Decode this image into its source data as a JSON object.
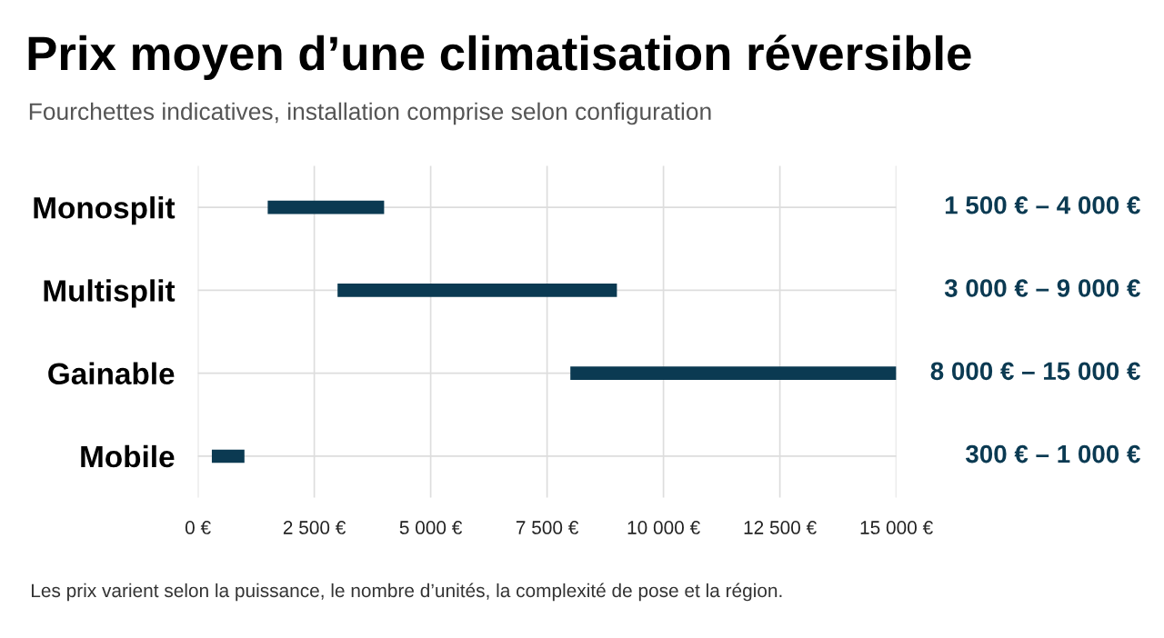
{
  "chart_data": {
    "type": "bar",
    "orientation": "horizontal",
    "title": "Prix moyen d’une climatisation réversible",
    "subtitle": "Fourchettes indicatives, installation comprise selon configuration",
    "categories": [
      "Monosplit",
      "Multisplit",
      "Gainable",
      "Mobile"
    ],
    "base": [
      1500,
      3000,
      8000,
      300
    ],
    "values": [
      2500,
      6000,
      7000,
      700
    ],
    "color": "#0b3a52",
    "xlim": [
      0,
      15000
    ],
    "xticks": [
      {
        "value": 0,
        "label": "0 €"
      },
      {
        "value": 2500,
        "label": "2 500 €"
      },
      {
        "value": 5000,
        "label": "5 000 €"
      },
      {
        "value": 7500,
        "label": "7 500 €"
      },
      {
        "value": 10000,
        "label": "10 000 €"
      },
      {
        "value": 12500,
        "label": "12 500 €"
      },
      {
        "value": 15000,
        "label": "15 000 €"
      }
    ],
    "grid": true,
    "annotations": [
      "1 500 € – 4 000 €",
      "3 000 € – 9 000 €",
      "8 000 € – 15 000 €",
      "300 € – 1 000 €",
      "Les prix varient selon la puissance, le nombre d’unités, la complexité de pose et la région."
    ]
  }
}
